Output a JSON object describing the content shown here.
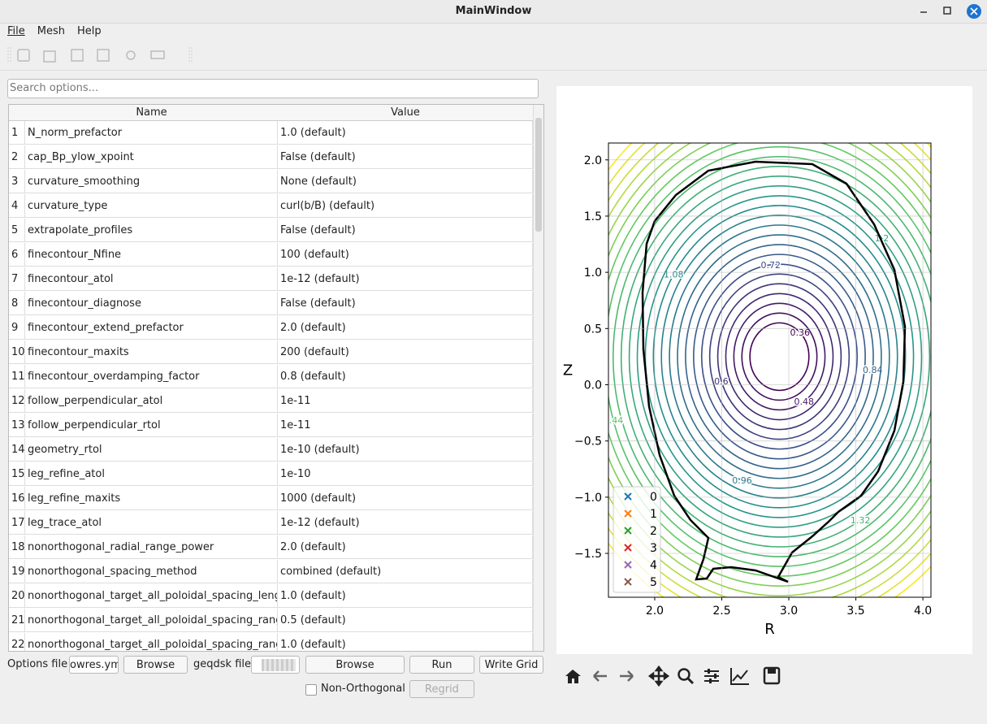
{
  "window": {
    "title": "MainWindow",
    "menu": [
      "File",
      "Mesh",
      "Help"
    ]
  },
  "search_placeholder": "Search options...",
  "table": {
    "columns": [
      "Name",
      "Value"
    ],
    "rows": [
      [
        1,
        "N_norm_prefactor",
        "1.0 (default)"
      ],
      [
        2,
        "cap_Bp_ylow_xpoint",
        "False (default)"
      ],
      [
        3,
        "curvature_smoothing",
        "None (default)"
      ],
      [
        4,
        "curvature_type",
        "curl(b/B) (default)"
      ],
      [
        5,
        "extrapolate_profiles",
        "False (default)"
      ],
      [
        6,
        "finecontour_Nfine",
        "100 (default)"
      ],
      [
        7,
        "finecontour_atol",
        "1e-12 (default)"
      ],
      [
        8,
        "finecontour_diagnose",
        "False (default)"
      ],
      [
        9,
        "finecontour_extend_prefactor",
        "2.0 (default)"
      ],
      [
        10,
        "finecontour_maxits",
        "200 (default)"
      ],
      [
        11,
        "finecontour_overdamping_factor",
        "0.8 (default)"
      ],
      [
        12,
        "follow_perpendicular_atol",
        "1e-11"
      ],
      [
        13,
        "follow_perpendicular_rtol",
        "1e-11"
      ],
      [
        14,
        "geometry_rtol",
        "1e-10 (default)"
      ],
      [
        15,
        "leg_refine_atol",
        "1e-10"
      ],
      [
        16,
        "leg_refine_maxits",
        "1000 (default)"
      ],
      [
        17,
        "leg_trace_atol",
        "1e-12 (default)"
      ],
      [
        18,
        "nonorthogonal_radial_range_power",
        "2.0 (default)"
      ],
      [
        19,
        "nonorthogonal_spacing_method",
        "combined (default)"
      ],
      [
        20,
        "nonorthogonal_target_all_poloidal_spacing_length",
        "1.0 (default)"
      ],
      [
        21,
        "nonorthogonal_target_all_poloidal_spacing_range",
        "0.5 (default)"
      ],
      [
        22,
        "nonorthogonal_target_all_poloidal_spacing_rang...",
        "1.0 (default)"
      ]
    ]
  },
  "controls": {
    "options_label": "Options file",
    "options_file": "owres.yml",
    "browse_options": "Browse",
    "geqdsk_label": "geqdsk file",
    "browse_geqdsk": "Browse",
    "run": "Run",
    "write_grid": "Write Grid",
    "non_orthogonal": "Non-Orthogonal",
    "regrid": "Regrid"
  },
  "chart_data": {
    "type": "contour",
    "xlabel": "R",
    "ylabel": "Z",
    "xlim": [
      1.655,
      4.06
    ],
    "ylim": [
      -1.89,
      2.15
    ],
    "xticks": [
      {
        "value": 2,
        "label": "2.0"
      },
      {
        "value": 2.5,
        "label": "2.5"
      },
      {
        "value": 3,
        "label": "3.0"
      },
      {
        "value": 3.5,
        "label": "3.5"
      },
      {
        "value": 4,
        "label": "4.0"
      }
    ],
    "yticks": [
      {
        "value": 2,
        "label": "2.0"
      },
      {
        "value": 1.5,
        "label": "1.5"
      },
      {
        "value": 1,
        "label": "1.0"
      },
      {
        "value": 0.5,
        "label": "0.5"
      },
      {
        "value": 0,
        "label": "0.0"
      },
      {
        "value": -0.5,
        "label": "−0.5"
      },
      {
        "value": -1,
        "label": "−1.0"
      },
      {
        "value": -1.5,
        "label": "−1.5"
      }
    ],
    "grid": true,
    "levels": [
      0.36,
      0.42,
      0.48,
      0.54,
      0.6,
      0.66,
      0.72,
      0.78,
      0.84,
      0.9,
      0.96,
      1.02,
      1.08,
      1.14,
      1.2,
      1.26,
      1.32,
      1.38,
      1.44,
      1.5,
      1.56,
      1.62,
      1.68,
      1.74,
      1.8,
      1.86
    ],
    "series": [
      {
        "name": "0",
        "color": "#1f77b4"
      },
      {
        "name": "1",
        "color": "#ff7f0e"
      },
      {
        "name": "2",
        "color": "#2ca02c"
      },
      {
        "name": "3",
        "color": "#d62728"
      },
      {
        "name": "4",
        "color": "#9467bd"
      },
      {
        "name": "5",
        "color": "#8c564b"
      }
    ],
    "legend": "lower left"
  }
}
